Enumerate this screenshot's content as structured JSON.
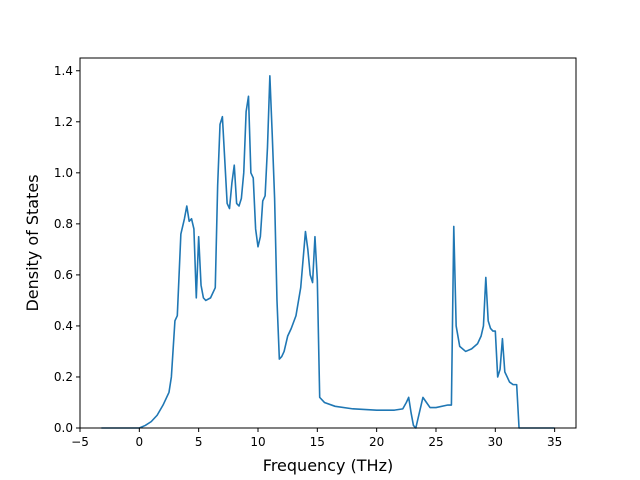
{
  "chart_data": {
    "type": "line",
    "title": "",
    "xlabel": "Frequency (THz)",
    "ylabel": "Density of States",
    "xlim": [
      -5,
      36.8
    ],
    "ylim": [
      0,
      1.45
    ],
    "xticks": [
      -5,
      0,
      5,
      10,
      15,
      20,
      25,
      30,
      35
    ],
    "yticks": [
      0.0,
      0.2,
      0.4,
      0.6,
      0.8,
      1.0,
      1.2,
      1.4
    ],
    "xtick_labels": [
      "−5",
      "0",
      "5",
      "10",
      "15",
      "20",
      "25",
      "30",
      "35"
    ],
    "ytick_labels": [
      "0.0",
      "0.2",
      "0.4",
      "0.6",
      "0.8",
      "1.0",
      "1.2",
      "1.4"
    ],
    "grid": false,
    "line_color": "#1f77b4",
    "series": [
      {
        "name": "",
        "x": [
          -3.2,
          -1,
          0,
          0.5,
          1,
          1.5,
          2,
          2.5,
          2.7,
          3,
          3.2,
          3.5,
          3.8,
          4.0,
          4.2,
          4.4,
          4.6,
          4.8,
          5.0,
          5.2,
          5.4,
          5.6,
          6.0,
          6.4,
          6.6,
          6.8,
          7.0,
          7.2,
          7.4,
          7.6,
          7.8,
          8.0,
          8.2,
          8.4,
          8.6,
          8.8,
          9.0,
          9.2,
          9.4,
          9.6,
          9.8,
          10.0,
          10.2,
          10.4,
          10.6,
          10.8,
          11.0,
          11.2,
          11.4,
          11.6,
          11.8,
          12.0,
          12.2,
          12.5,
          12.8,
          13.2,
          13.6,
          14.0,
          14.2,
          14.4,
          14.6,
          14.8,
          15.0,
          15.2,
          15.6,
          16.5,
          18,
          20,
          21.5,
          22.2,
          22.5,
          22.7,
          22.9,
          23.1,
          23.3,
          23.6,
          23.9,
          24.2,
          24.5,
          25,
          26,
          26.3,
          26.5,
          26.7,
          27,
          27.5,
          28,
          28.5,
          28.8,
          29.0,
          29.2,
          29.4,
          29.6,
          29.8,
          30.0,
          30.2,
          30.4,
          30.6,
          30.8,
          31.0,
          31.2,
          31.5,
          31.8,
          32.0,
          33,
          35
        ],
        "y": [
          0.0,
          0.0,
          0.0,
          0.01,
          0.025,
          0.05,
          0.09,
          0.14,
          0.2,
          0.42,
          0.44,
          0.76,
          0.82,
          0.87,
          0.81,
          0.82,
          0.78,
          0.51,
          0.75,
          0.56,
          0.51,
          0.5,
          0.51,
          0.55,
          0.95,
          1.19,
          1.22,
          1.05,
          0.88,
          0.86,
          0.96,
          1.03,
          0.88,
          0.87,
          0.9,
          1.0,
          1.24,
          1.3,
          1.0,
          0.98,
          0.78,
          0.71,
          0.75,
          0.89,
          0.91,
          1.1,
          1.38,
          1.15,
          0.9,
          0.5,
          0.27,
          0.28,
          0.3,
          0.36,
          0.39,
          0.44,
          0.55,
          0.77,
          0.7,
          0.6,
          0.57,
          0.75,
          0.58,
          0.12,
          0.1,
          0.085,
          0.075,
          0.07,
          0.07,
          0.075,
          0.1,
          0.12,
          0.06,
          0.01,
          0.0,
          0.06,
          0.12,
          0.1,
          0.08,
          0.08,
          0.09,
          0.09,
          0.79,
          0.4,
          0.32,
          0.3,
          0.31,
          0.33,
          0.36,
          0.4,
          0.59,
          0.42,
          0.39,
          0.38,
          0.38,
          0.2,
          0.23,
          0.35,
          0.22,
          0.2,
          0.18,
          0.17,
          0.17,
          0.0,
          0.0,
          0.0
        ]
      }
    ]
  }
}
